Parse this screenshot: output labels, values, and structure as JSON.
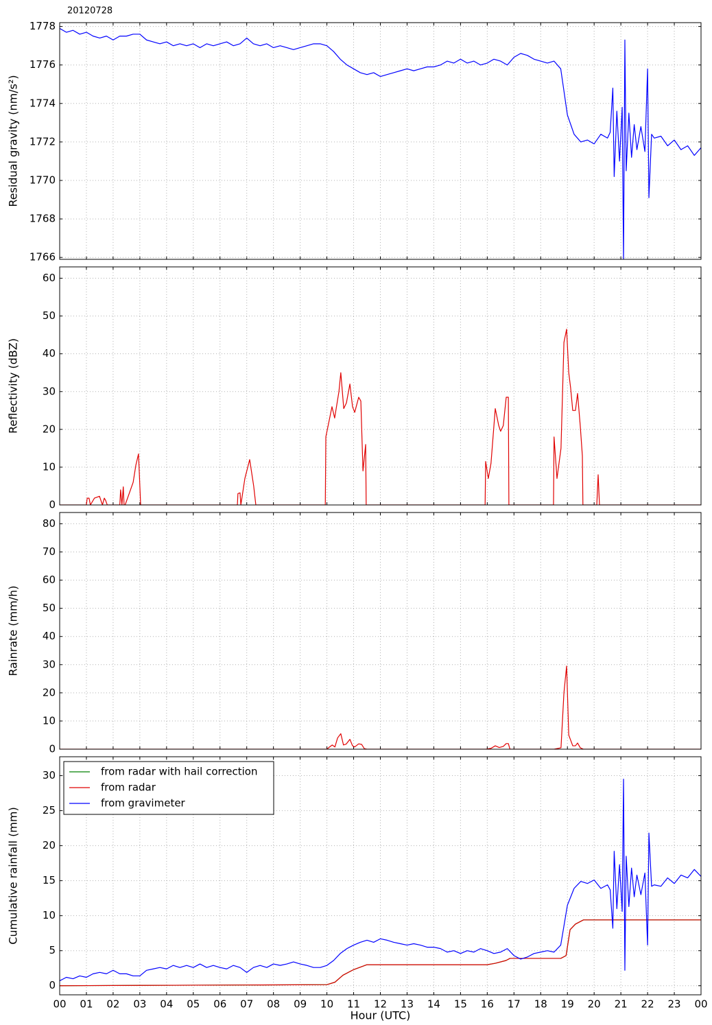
{
  "chart_data": [
    {
      "type": "line",
      "title": "20120728",
      "ylabel": "Residual gravity (nm/s²)",
      "ylim": [
        1765.9,
        1778.2
      ],
      "yticks": [
        1766,
        1768,
        1770,
        1772,
        1774,
        1776,
        1778
      ],
      "grid": true,
      "x": [
        0,
        0.25,
        0.5,
        0.75,
        1,
        1.25,
        1.5,
        1.75,
        2,
        2.25,
        2.5,
        2.75,
        3,
        3.25,
        3.5,
        3.75,
        4,
        4.25,
        4.5,
        4.75,
        5,
        5.25,
        5.5,
        5.75,
        6,
        6.25,
        6.5,
        6.75,
        7,
        7.25,
        7.5,
        7.75,
        8,
        8.25,
        8.5,
        8.75,
        9,
        9.25,
        9.5,
        9.75,
        10,
        10.25,
        10.5,
        10.75,
        11,
        11.25,
        11.5,
        11.75,
        12,
        12.25,
        12.5,
        12.75,
        13,
        13.25,
        13.5,
        13.75,
        14,
        14.25,
        14.5,
        14.75,
        15,
        15.25,
        15.5,
        15.75,
        16,
        16.25,
        16.5,
        16.75,
        17,
        17.25,
        17.5,
        17.75,
        18,
        18.25,
        18.5,
        18.75,
        19,
        19.25,
        19.5,
        19.75,
        20,
        20.25,
        20.5,
        20.6,
        20.7,
        20.75,
        20.85,
        20.95,
        21.05,
        21.1,
        21.15,
        21.2,
        21.3,
        21.4,
        21.5,
        21.6,
        21.75,
        21.9,
        22,
        22.05,
        22.15,
        22.25,
        22.5,
        22.75,
        23,
        23.25,
        23.5,
        23.75,
        24
      ],
      "series": [
        {
          "color": "#0000ff",
          "values": [
            1777.9,
            1777.7,
            1777.8,
            1777.6,
            1777.7,
            1777.5,
            1777.4,
            1777.5,
            1777.3,
            1777.5,
            1777.5,
            1777.6,
            1777.6,
            1777.3,
            1777.2,
            1777.1,
            1777.2,
            1777.0,
            1777.1,
            1777.0,
            1777.1,
            1776.9,
            1777.1,
            1777.0,
            1777.1,
            1777.2,
            1777.0,
            1777.1,
            1777.4,
            1777.1,
            1777.0,
            1777.1,
            1776.9,
            1777.0,
            1776.9,
            1776.8,
            1776.9,
            1777.0,
            1777.1,
            1777.1,
            1777.0,
            1776.7,
            1776.3,
            1776.0,
            1775.8,
            1775.6,
            1775.5,
            1775.6,
            1775.4,
            1775.5,
            1775.6,
            1775.7,
            1775.8,
            1775.7,
            1775.8,
            1775.9,
            1775.9,
            1776.0,
            1776.2,
            1776.1,
            1776.3,
            1776.1,
            1776.2,
            1776.0,
            1776.1,
            1776.3,
            1776.2,
            1776.0,
            1776.4,
            1776.6,
            1776.5,
            1776.3,
            1776.2,
            1776.1,
            1776.2,
            1775.8,
            1773.4,
            1772.4,
            1772.0,
            1772.1,
            1771.9,
            1772.4,
            1772.2,
            1772.5,
            1774.8,
            1770.2,
            1773.6,
            1771.0,
            1773.8,
            1765.9,
            1777.3,
            1770.5,
            1773.5,
            1771.2,
            1772.9,
            1771.6,
            1772.8,
            1771.5,
            1775.8,
            1769.1,
            1772.4,
            1772.2,
            1772.3,
            1771.8,
            1772.1,
            1771.6,
            1771.8,
            1771.3,
            1771.7
          ]
        }
      ]
    },
    {
      "type": "line",
      "ylabel": "Reflectivity (dBZ)",
      "ylim": [
        0,
        63
      ],
      "yticks": [
        0,
        10,
        20,
        30,
        40,
        50,
        60
      ],
      "grid": true,
      "x": [
        0,
        1.0,
        1.03,
        1.1,
        1.15,
        1.3,
        1.49,
        1.6,
        1.67,
        1.72,
        1.78,
        2.25,
        2.28,
        2.33,
        2.38,
        2.41,
        2.45,
        2.75,
        2.85,
        2.95,
        3.03,
        6.65,
        6.67,
        6.75,
        6.78,
        6.93,
        7.11,
        7.26,
        7.34,
        9.94,
        9.96,
        10.19,
        10.29,
        10.45,
        10.52,
        10.63,
        10.73,
        10.86,
        10.96,
        11.04,
        11.19,
        11.27,
        11.35,
        11.45,
        11.47,
        15.92,
        15.94,
        16.04,
        16.14,
        16.3,
        16.43,
        16.5,
        16.6,
        16.71,
        16.79,
        16.81,
        18.48,
        18.5,
        18.61,
        18.76,
        18.87,
        18.97,
        19.05,
        19.12,
        19.2,
        19.3,
        19.38,
        19.48,
        19.56,
        19.58,
        20.1,
        20.15,
        20.2,
        24
      ],
      "series": [
        {
          "color": "#e00000",
          "values": [
            0,
            0,
            1.8,
            1.8,
            0,
            1.8,
            2.3,
            0,
            1.8,
            1.2,
            0,
            0,
            4,
            0,
            4.8,
            0,
            0,
            6,
            10.5,
            13.5,
            0,
            0,
            3,
            3.2,
            0,
            7,
            12,
            5,
            0,
            0,
            18,
            26,
            23,
            30,
            35,
            25.5,
            27,
            32,
            26,
            24.5,
            28.5,
            27.5,
            9,
            16,
            0,
            0,
            11.5,
            7,
            11,
            25.5,
            21,
            19.5,
            21,
            28.5,
            28.5,
            0,
            0,
            18,
            7,
            15,
            43,
            46.5,
            35,
            31,
            25,
            25,
            29.5,
            21,
            13,
            0,
            0,
            8,
            0,
            0
          ]
        }
      ]
    },
    {
      "type": "line",
      "ylabel": "Rainrate (mm/h)",
      "ylim": [
        0,
        84
      ],
      "yticks": [
        0,
        10,
        20,
        30,
        40,
        50,
        60,
        70,
        80
      ],
      "grid": true,
      "x": [
        0,
        10,
        10.1,
        10.2,
        10.3,
        10.4,
        10.52,
        10.62,
        10.72,
        10.86,
        10.96,
        11.04,
        11.19,
        11.3,
        11.4,
        11.5,
        15.95,
        16.14,
        16.3,
        16.45,
        16.6,
        16.71,
        16.79,
        16.85,
        18.5,
        18.76,
        18.87,
        18.97,
        19.05,
        19.2,
        19.3,
        19.38,
        19.48,
        19.6,
        24
      ],
      "series": [
        {
          "color": "#e00000",
          "values": [
            0,
            0,
            0.8,
            1.5,
            0.8,
            4,
            5.5,
            1.5,
            1.8,
            3.5,
            1.2,
            0.8,
            1.9,
            1.7,
            0.2,
            0,
            0,
            0.3,
            1.2,
            0.6,
            1.0,
            2.0,
            2.0,
            0,
            0,
            0.5,
            20,
            29.5,
            5,
            1.2,
            1.2,
            2.2,
            0.5,
            0,
            0
          ]
        }
      ]
    },
    {
      "type": "line",
      "ylabel": "Cumulative rainfall (mm)",
      "xlabel": "Hour (UTC)",
      "ylim": [
        -1.3,
        32.7
      ],
      "yticks": [
        0,
        5,
        10,
        15,
        20,
        25,
        30
      ],
      "grid": true,
      "legend": "upper left",
      "xlim": [
        0,
        24
      ],
      "xticks": [
        {
          "value": 0,
          "label": "00"
        },
        {
          "value": 1,
          "label": "01"
        },
        {
          "value": 2,
          "label": "02"
        },
        {
          "value": 3,
          "label": "03"
        },
        {
          "value": 4,
          "label": "04"
        },
        {
          "value": 5,
          "label": "05"
        },
        {
          "value": 6,
          "label": "06"
        },
        {
          "value": 7,
          "label": "07"
        },
        {
          "value": 8,
          "label": "08"
        },
        {
          "value": 9,
          "label": "09"
        },
        {
          "value": 10,
          "label": "10"
        },
        {
          "value": 11,
          "label": "11"
        },
        {
          "value": 12,
          "label": "12"
        },
        {
          "value": 13,
          "label": "13"
        },
        {
          "value": 14,
          "label": "14"
        },
        {
          "value": 15,
          "label": "15"
        },
        {
          "value": 16,
          "label": "16"
        },
        {
          "value": 17,
          "label": "17"
        },
        {
          "value": 18,
          "label": "18"
        },
        {
          "value": 19,
          "label": "19"
        },
        {
          "value": 20,
          "label": "20"
        },
        {
          "value": 21,
          "label": "21"
        },
        {
          "value": 22,
          "label": "22"
        },
        {
          "value": 23,
          "label": "23"
        },
        {
          "value": 24,
          "label": "00"
        }
      ],
      "x": [
        0,
        0.25,
        0.5,
        0.75,
        1,
        1.25,
        1.5,
        1.75,
        2,
        2.25,
        2.5,
        2.75,
        3,
        3.25,
        3.5,
        3.75,
        4,
        4.25,
        4.5,
        4.75,
        5,
        5.25,
        5.5,
        5.75,
        6,
        6.25,
        6.5,
        6.75,
        7,
        7.25,
        7.5,
        7.75,
        8,
        8.25,
        8.5,
        8.75,
        9,
        9.25,
        9.5,
        9.75,
        10,
        10.25,
        10.5,
        10.75,
        11,
        11.25,
        11.5,
        11.75,
        12,
        12.25,
        12.5,
        12.75,
        13,
        13.25,
        13.5,
        13.75,
        14,
        14.25,
        14.5,
        14.75,
        15,
        15.25,
        15.5,
        15.75,
        16,
        16.25,
        16.5,
        16.75,
        17,
        17.25,
        17.5,
        17.75,
        18,
        18.25,
        18.5,
        18.75,
        19,
        19.25,
        19.5,
        19.75,
        20,
        20.25,
        20.5,
        20.6,
        20.7,
        20.75,
        20.85,
        20.95,
        21.05,
        21.1,
        21.15,
        21.2,
        21.3,
        21.4,
        21.5,
        21.6,
        21.75,
        21.9,
        22,
        22.05,
        22.15,
        22.25,
        22.5,
        22.75,
        23,
        23.25,
        23.5,
        23.75,
        24
      ],
      "series": [
        {
          "name": "from radar with hail correction",
          "color": "#008000",
          "x": [
            0,
            3,
            7,
            10,
            10.3,
            10.6,
            11,
            11.5,
            16,
            16.3,
            16.7,
            16.85,
            18.75,
            18.95,
            19.1,
            19.3,
            19.6,
            24
          ],
          "values": [
            0,
            0.05,
            0.1,
            0.15,
            0.5,
            1.5,
            2.3,
            3.0,
            3.0,
            3.2,
            3.6,
            3.9,
            3.9,
            4.3,
            8.0,
            8.8,
            9.4,
            9.4
          ]
        },
        {
          "name": "from radar",
          "color": "#e00000",
          "x": [
            0,
            3,
            7,
            10,
            10.3,
            10.6,
            11,
            11.5,
            16,
            16.3,
            16.7,
            16.85,
            18.75,
            18.95,
            19.1,
            19.3,
            19.6,
            24
          ],
          "values": [
            0,
            0.05,
            0.1,
            0.15,
            0.5,
            1.5,
            2.3,
            3.0,
            3.0,
            3.2,
            3.6,
            3.9,
            3.9,
            4.3,
            8.0,
            8.8,
            9.4,
            9.4
          ]
        },
        {
          "name": "from gravimeter",
          "color": "#0000ff",
          "values": [
            0.7,
            1.2,
            1.0,
            1.4,
            1.2,
            1.7,
            1.9,
            1.7,
            2.2,
            1.7,
            1.7,
            1.4,
            1.4,
            2.2,
            2.4,
            2.6,
            2.4,
            2.9,
            2.6,
            2.9,
            2.6,
            3.1,
            2.6,
            2.9,
            2.6,
            2.4,
            2.9,
            2.6,
            1.9,
            2.6,
            2.9,
            2.6,
            3.1,
            2.9,
            3.1,
            3.4,
            3.1,
            2.9,
            2.6,
            2.6,
            2.9,
            3.6,
            4.6,
            5.3,
            5.8,
            6.2,
            6.5,
            6.2,
            6.7,
            6.5,
            6.2,
            6.0,
            5.8,
            6.0,
            5.8,
            5.5,
            5.5,
            5.3,
            4.8,
            5.0,
            4.6,
            5.0,
            4.8,
            5.3,
            5.0,
            4.6,
            4.8,
            5.3,
            4.3,
            3.8,
            4.1,
            4.6,
            4.8,
            5.0,
            4.8,
            5.8,
            11.5,
            13.9,
            14.9,
            14.6,
            15.1,
            13.9,
            14.4,
            13.7,
            8.2,
            19.2,
            11.0,
            17.3,
            10.6,
            29.5,
            2.2,
            18.5,
            11.3,
            16.8,
            12.7,
            15.8,
            13.0,
            16.1,
            5.8,
            21.8,
            14.2,
            14.4,
            14.2,
            15.4,
            14.6,
            15.8,
            15.4,
            16.6,
            15.6
          ]
        }
      ]
    }
  ]
}
